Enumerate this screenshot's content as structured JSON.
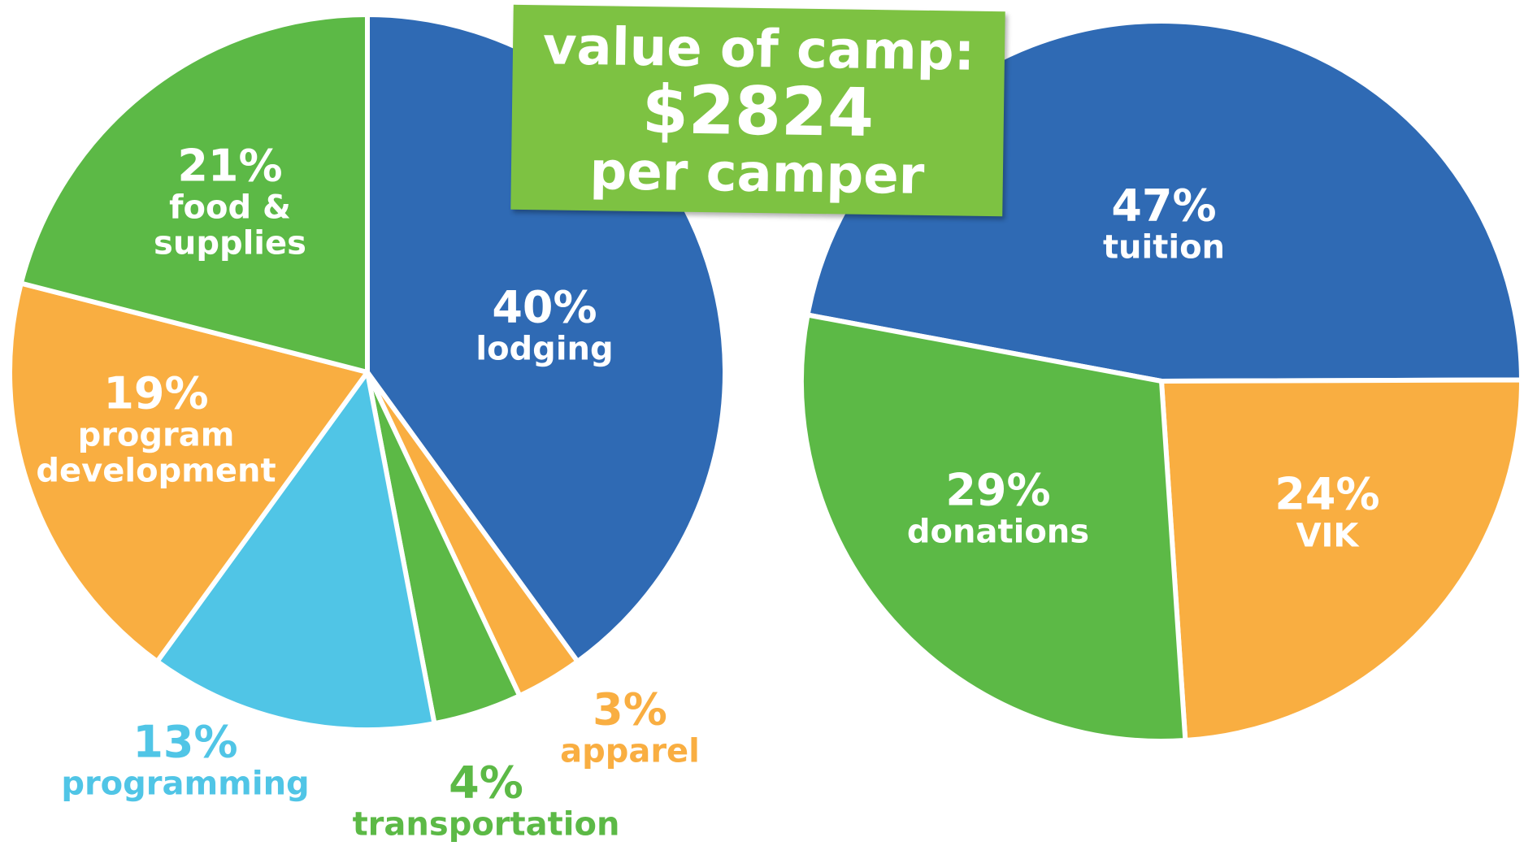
{
  "title": {
    "line1": "value of camp:",
    "amount": "$2824",
    "line2": "per camper"
  },
  "chart_data": [
    {
      "type": "pie",
      "categories": [
        "lodging",
        "apparel",
        "transportation",
        "programming",
        "program development",
        "food & supplies"
      ],
      "values": [
        40,
        3,
        4,
        13,
        19,
        21
      ],
      "value_labels": [
        "40%",
        "3%",
        "4%",
        "13%",
        "19%",
        "21%"
      ],
      "colors": [
        "#2f6ab4",
        "#f9ae41",
        "#5cb946",
        "#50c5e6",
        "#f9ae41",
        "#5cb946"
      ]
    },
    {
      "type": "pie",
      "categories": [
        "tuition",
        "VIK",
        "donations"
      ],
      "values": [
        47,
        24,
        29
      ],
      "value_labels": [
        "47%",
        "24%",
        "29%"
      ],
      "colors": [
        "#2f6ab4",
        "#f9ae41",
        "#5cb946"
      ]
    }
  ]
}
